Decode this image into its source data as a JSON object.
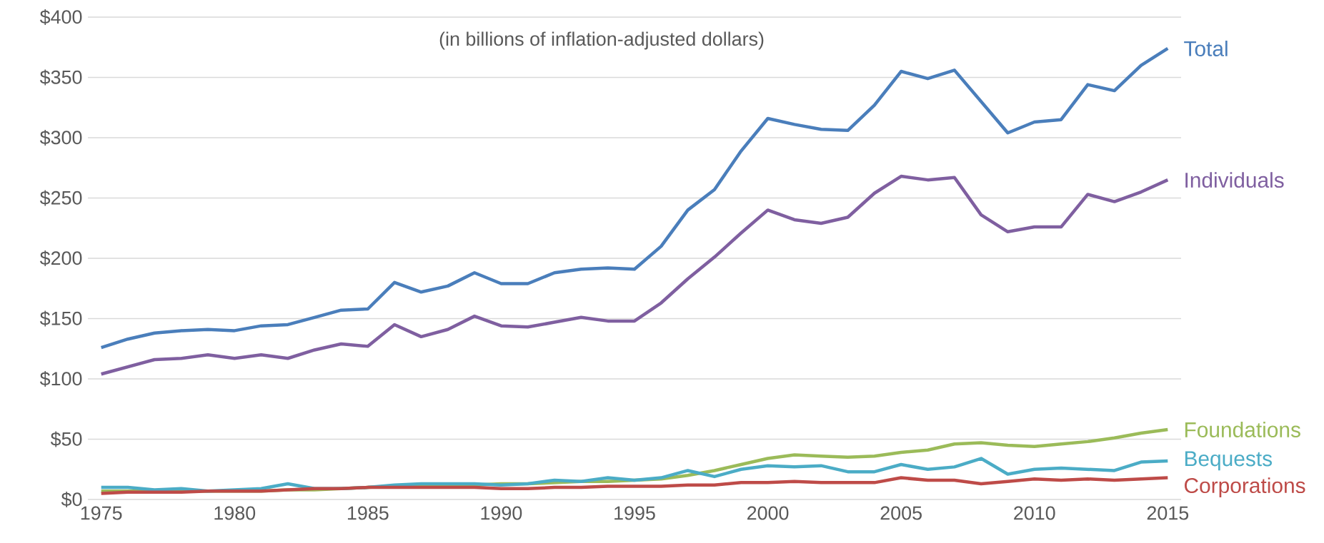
{
  "chart_data": {
    "type": "line",
    "subtitle": "(in billions of inflation-adjusted dollars)",
    "x": [
      1975,
      1976,
      1977,
      1978,
      1979,
      1980,
      1981,
      1982,
      1983,
      1984,
      1985,
      1986,
      1987,
      1988,
      1989,
      1990,
      1991,
      1992,
      1993,
      1994,
      1995,
      1996,
      1997,
      1998,
      1999,
      2000,
      2001,
      2002,
      2003,
      2004,
      2005,
      2006,
      2007,
      2008,
      2009,
      2010,
      2011,
      2012,
      2013,
      2014,
      2015
    ],
    "series": [
      {
        "name": "Total",
        "color": "#4a7ebb",
        "values": [
          126,
          133,
          138,
          140,
          141,
          140,
          144,
          145,
          151,
          157,
          158,
          180,
          172,
          177,
          188,
          179,
          179,
          188,
          191,
          192,
          191,
          210,
          240,
          257,
          289,
          316,
          311,
          307,
          306,
          327,
          355,
          349,
          356,
          330,
          304,
          313,
          315,
          344,
          339,
          360,
          374
        ]
      },
      {
        "name": "Individuals",
        "color": "#7f5fa0",
        "values": [
          104,
          110,
          116,
          117,
          120,
          117,
          120,
          117,
          124,
          129,
          127,
          145,
          135,
          141,
          152,
          144,
          143,
          147,
          151,
          148,
          148,
          163,
          183,
          201,
          221,
          240,
          232,
          229,
          234,
          254,
          268,
          265,
          267,
          236,
          222,
          226,
          226,
          253,
          247,
          255,
          265
        ]
      },
      {
        "name": "Foundations",
        "color": "#9bbb59",
        "values": [
          7,
          7,
          7,
          7,
          7,
          7,
          7,
          8,
          8,
          9,
          10,
          11,
          12,
          12,
          12,
          13,
          13,
          14,
          15,
          15,
          16,
          17,
          20,
          24,
          29,
          34,
          37,
          36,
          35,
          36,
          39,
          41,
          46,
          47,
          45,
          44,
          46,
          48,
          51,
          55,
          58
        ]
      },
      {
        "name": "Bequests",
        "color": "#4bacc6",
        "values": [
          10,
          10,
          8,
          9,
          7,
          8,
          9,
          13,
          9,
          9,
          10,
          12,
          13,
          13,
          13,
          12,
          13,
          16,
          15,
          18,
          16,
          18,
          24,
          19,
          25,
          28,
          27,
          28,
          23,
          23,
          29,
          25,
          27,
          34,
          21,
          25,
          26,
          25,
          24,
          31,
          32
        ]
      },
      {
        "name": "Corporations",
        "color": "#be4b48",
        "values": [
          5,
          6,
          6,
          6,
          7,
          7,
          7,
          8,
          9,
          9,
          10,
          10,
          10,
          10,
          10,
          9,
          9,
          10,
          10,
          11,
          11,
          11,
          12,
          12,
          14,
          14,
          15,
          14,
          14,
          14,
          18,
          16,
          16,
          13,
          15,
          17,
          16,
          17,
          16,
          17,
          18
        ]
      }
    ],
    "xlim": [
      1974.5,
      2015.5
    ],
    "ylim": [
      0,
      400
    ],
    "xticks": [
      1975,
      1980,
      1985,
      1990,
      1995,
      2000,
      2005,
      2010,
      2015
    ],
    "yticks": [
      {
        "value": 0,
        "label": "$0"
      },
      {
        "value": 50,
        "label": "$50"
      },
      {
        "value": 100,
        "label": "$100"
      },
      {
        "value": 150,
        "label": "$150"
      },
      {
        "value": 200,
        "label": "$200"
      },
      {
        "value": 250,
        "label": "$250"
      },
      {
        "value": 300,
        "label": "$300"
      },
      {
        "value": 350,
        "label": "$350"
      },
      {
        "value": 400,
        "label": "$400"
      }
    ],
    "grid": "y",
    "legend": false,
    "marker": "none",
    "line_style": "solid"
  }
}
